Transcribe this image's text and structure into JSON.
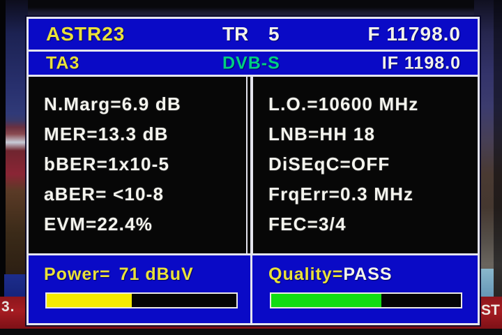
{
  "colors": {
    "osd_blue": "#0a0ac6",
    "osd_yellow": "#e9e13a",
    "osd_green": "#00cf82",
    "osd_white": "#f2f2ea",
    "ticker_red": "#a51c22"
  },
  "header": {
    "satellite": "ASTR23",
    "tr_label": "TR",
    "tr_value": "5",
    "frequency": "F 11798.0",
    "channel": "TA3",
    "system": "DVB-S",
    "if_frequency": "IF 1198.0"
  },
  "measurements": {
    "left": [
      "N.Marg=6.9 dB",
      "MER=13.3 dB",
      "bBER=1x10-5",
      "aBER= <10-8",
      "EVM=22.4%"
    ],
    "right": [
      "L.O.=10600 MHz",
      "LNB=HH 18",
      "DiSEqC=OFF",
      "FrqErr=0.3 MHz",
      "FEC=3/4"
    ]
  },
  "power": {
    "label": "Power=",
    "value": "71 dBuV",
    "bar_percent": "45%",
    "bar_color": "#f5ea00"
  },
  "quality": {
    "label": "Quality=",
    "value": "PASS",
    "bar_percent": "58%",
    "bar_color": "#12dd12"
  },
  "background": {
    "ticker_left": "3.",
    "ticker_right": "ST"
  }
}
